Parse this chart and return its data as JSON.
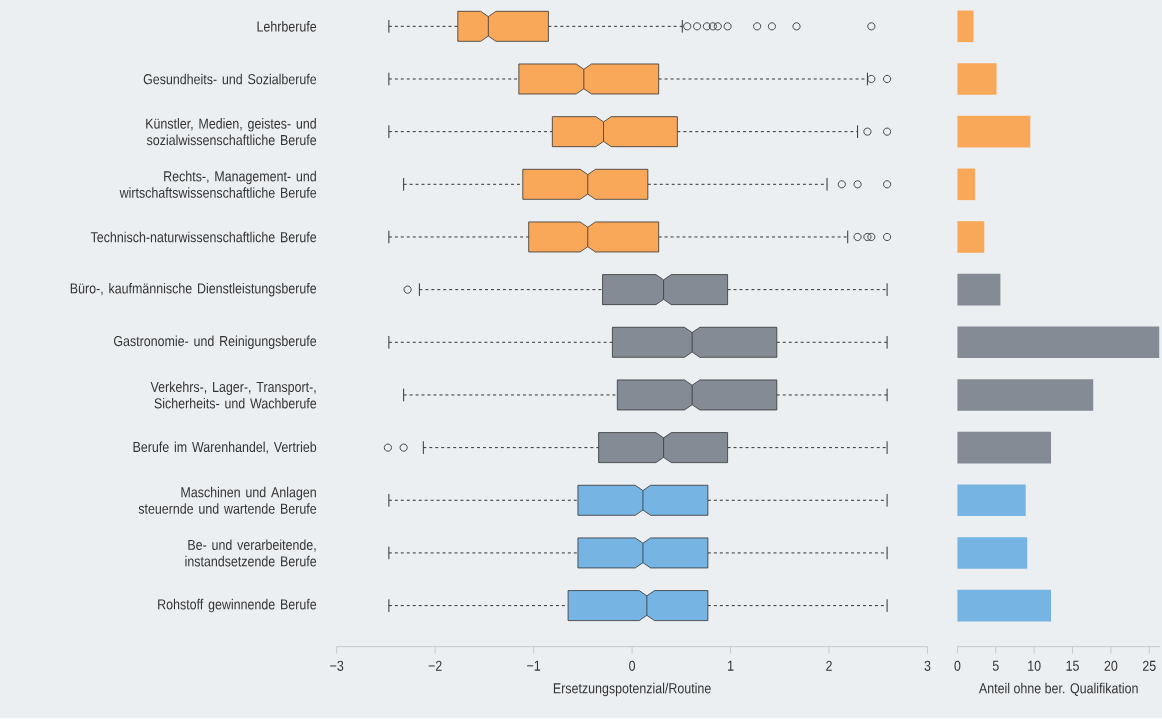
{
  "chart_data": [
    {
      "type": "box",
      "orientation": "horizontal",
      "xlabel": "Ersetzungspotenzial/Routine",
      "xlim": [
        -3,
        3
      ],
      "xticks": [
        {
          "value": -3,
          "label": "−3"
        },
        {
          "value": -2,
          "label": "−2"
        },
        {
          "value": -1,
          "label": "−1"
        },
        0,
        1,
        2,
        3
      ],
      "categories": [
        "Lehrberufe",
        "Gesundheits- und Sozialberufe",
        "Künstler, Medien, geistes- und sozialwissenschaftliche Berufe",
        "Rechts-, Management- und wirtschaftswissenschaftliche Berufe",
        "Technisch-naturwissenschaftliche Berufe",
        "Büro-, kaufmännische Dienstleistungsberufe",
        "Gastronomie- und Reinigungsberufe",
        "Verkehrs-, Lager-, Transport-, Sicherheits- und Wachberufe",
        "Berufe im Warenhandel, Vertrieb",
        "Maschinen und Anlagen steuernde und wartende Berufe",
        "Be- und verarbeitende, instandsetzende Berufe",
        "Rohstoff gewinnende Berufe"
      ],
      "colors": [
        "#f9a85a",
        "#f9a85a",
        "#f9a85a",
        "#f9a85a",
        "#f9a85a",
        "#858b94",
        "#858b94",
        "#858b94",
        "#858b94",
        "#76b4e3",
        "#76b4e3",
        "#76b4e3"
      ],
      "boxes": [
        {
          "low": -2.47,
          "q1": -1.77,
          "median": -1.46,
          "q3": -0.85,
          "high": 0.51,
          "outliers": [
            0.56,
            0.66,
            0.76,
            0.82,
            0.87,
            0.97,
            1.27,
            1.42,
            1.67,
            2.43
          ]
        },
        {
          "low": -2.47,
          "q1": -1.15,
          "median": -0.49,
          "q3": 0.27,
          "high": 2.39,
          "outliers": [
            2.43,
            2.59
          ]
        },
        {
          "low": -2.47,
          "q1": -0.81,
          "median": -0.29,
          "q3": 0.46,
          "high": 2.29,
          "outliers": [
            2.39,
            2.59
          ]
        },
        {
          "low": -2.32,
          "q1": -1.11,
          "median": -0.45,
          "q3": 0.16,
          "high": 1.98,
          "outliers": [
            2.13,
            2.29,
            2.59
          ]
        },
        {
          "low": -2.47,
          "q1": -1.05,
          "median": -0.45,
          "q3": 0.27,
          "high": 2.19,
          "outliers": [
            2.29,
            2.39,
            2.43,
            2.59
          ]
        },
        {
          "low": -2.16,
          "q1": -0.3,
          "median": 0.32,
          "q3": 0.97,
          "high": 2.59,
          "outliers": [
            -2.28
          ]
        },
        {
          "low": -2.47,
          "q1": -0.2,
          "median": 0.61,
          "q3": 1.47,
          "high": 2.59
        },
        {
          "low": -2.32,
          "q1": -0.15,
          "median": 0.61,
          "q3": 1.47,
          "high": 2.59
        },
        {
          "low": -2.12,
          "q1": -0.34,
          "median": 0.32,
          "q3": 0.97,
          "high": 2.59,
          "outliers": [
            -2.48,
            -2.32
          ]
        },
        {
          "low": -2.47,
          "q1": -0.55,
          "median": 0.11,
          "q3": 0.77,
          "high": 2.59
        },
        {
          "low": -2.47,
          "q1": -0.55,
          "median": 0.11,
          "q3": 0.77,
          "high": 2.59
        },
        {
          "low": -2.47,
          "q1": -0.65,
          "median": 0.15,
          "q3": 0.77,
          "high": 2.59
        }
      ]
    },
    {
      "type": "bar",
      "orientation": "horizontal",
      "xlabel": "Anteil ohne ber. Qualifikation",
      "xlim": [
        0,
        26.4
      ],
      "xticks": [
        0,
        5,
        10,
        15,
        20,
        25
      ],
      "tick_labels": "x",
      "categories": [
        null,
        null,
        null,
        null,
        null,
        null,
        null,
        null,
        null,
        null,
        null,
        null
      ],
      "values": [
        2.1,
        5.1,
        9.5,
        2.3,
        3.5,
        5.6,
        26.3,
        17.7,
        12.2,
        8.9,
        9.1,
        12.2
      ],
      "colors": [
        "#f9a85a",
        "#f9a85a",
        "#f9a85a",
        "#f9a85a",
        "#f9a85a",
        "#858b94",
        "#858b94",
        "#858b94",
        "#858b94",
        "#76b4e3",
        "#76b4e3",
        "#76b4e3"
      ]
    }
  ]
}
